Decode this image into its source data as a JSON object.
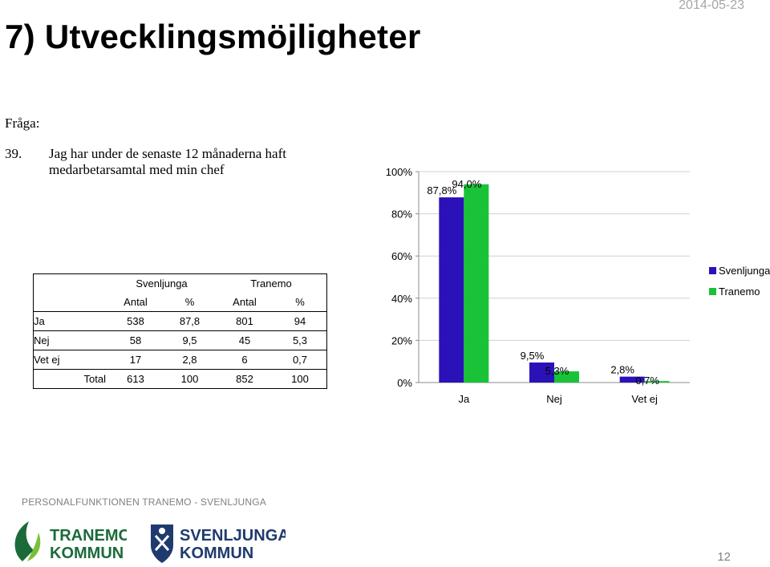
{
  "header": {
    "title": "7) Utvecklingsmöjligheter",
    "date": "2014-05-23"
  },
  "question": {
    "label": "Fråga:",
    "number": "39.",
    "text": "Jag har under de senaste 12 månaderna haft medarbetarsamtal med min chef"
  },
  "table": {
    "groups": [
      "Svenljunga",
      "Tranemo"
    ],
    "subheaders": [
      "Antal",
      "%",
      "Antal",
      "%"
    ],
    "rows": [
      {
        "label": "Ja",
        "values": [
          "538",
          "87,8",
          "801",
          "94"
        ]
      },
      {
        "label": "Nej",
        "values": [
          "58",
          "9,5",
          "45",
          "5,3"
        ]
      },
      {
        "label": "Vet ej",
        "values": [
          "17",
          "2,8",
          "6",
          "0,7"
        ]
      },
      {
        "label": "Total",
        "values": [
          "613",
          "100",
          "852",
          "100"
        ]
      }
    ]
  },
  "chart_data": {
    "type": "bar",
    "categories": [
      "Ja",
      "Nej",
      "Vet ej"
    ],
    "series": [
      {
        "name": "Svenljunga",
        "values": [
          87.8,
          9.5,
          2.8
        ],
        "labels": [
          "87,8%",
          "9,5%",
          "2,8%"
        ],
        "color": "#2b12b8"
      },
      {
        "name": "Tranemo",
        "values": [
          94.0,
          5.3,
          0.7
        ],
        "labels": [
          "94,0%",
          "5,3%",
          "0,7%"
        ],
        "color": "#19c338"
      }
    ],
    "yticks": [
      "0%",
      "20%",
      "40%",
      "60%",
      "80%",
      "100%"
    ],
    "ylim": [
      0,
      100
    ],
    "grid": true,
    "legend_position": "right"
  },
  "footer": {
    "org_text": "PERSONALFUNKTIONEN TRANEMO - SVENLJUNGA",
    "page_number": "12",
    "logo1": {
      "line1": "TRANEMO",
      "line2": "KOMMUN",
      "color": "#1b6b3a"
    },
    "logo2": {
      "line1": "SVENLJUNGA",
      "line2": "KOMMUN",
      "color": "#1f3a6e"
    }
  }
}
